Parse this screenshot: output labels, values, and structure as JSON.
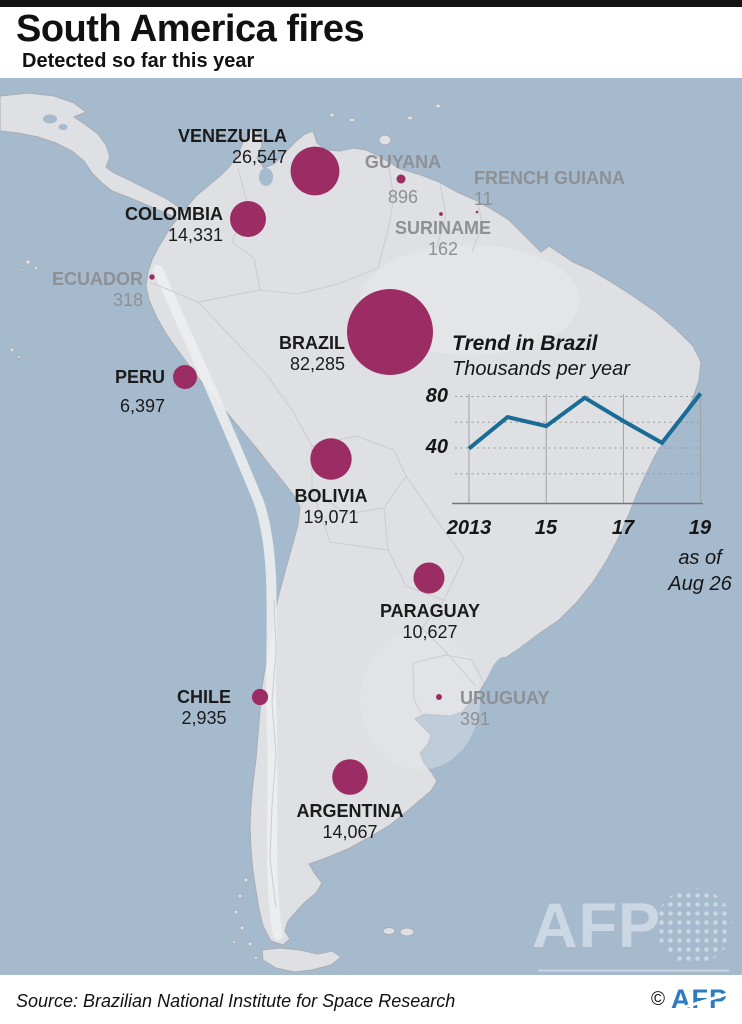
{
  "header": {
    "title": "South America fires",
    "subtitle": "Detected so far this year"
  },
  "map": {
    "countries": [
      {
        "name": "VENEZUELA",
        "value": "26,547"
      },
      {
        "name": "COLOMBIA",
        "value": "14,331"
      },
      {
        "name": "BRAZIL",
        "value": "82,285"
      },
      {
        "name": "PERU",
        "value": "6,397"
      },
      {
        "name": "BOLIVIA",
        "value": "19,071"
      },
      {
        "name": "PARAGUAY",
        "value": "10,627"
      },
      {
        "name": "CHILE",
        "value": "2,935"
      },
      {
        "name": "ARGENTINA",
        "value": "14,067"
      },
      {
        "name": "GUYANA",
        "value": "896"
      },
      {
        "name": "FRENCH GUIANA",
        "value": "11"
      },
      {
        "name": "SURINAME",
        "value": "162"
      },
      {
        "name": "ECUADOR",
        "value": "318"
      },
      {
        "name": "URUGUAY",
        "value": "391"
      }
    ]
  },
  "inset": {
    "title": "Trend in Brazil",
    "subtitle": "Thousands per year",
    "yticks": [
      "80",
      "40"
    ],
    "xticks": [
      "2013",
      "15",
      "17",
      "19"
    ],
    "note": [
      "as of",
      "Aug 26"
    ]
  },
  "footer": {
    "source": "Source: Brazilian National Institute for Space Research",
    "copyright_symbol": "©",
    "brand": "AFP"
  },
  "watermark_brand": "AFP",
  "colors": {
    "bubble": "#9b2d64",
    "sea": "#a6bace",
    "land": "#dfe0e3",
    "trend_line": "#1a6c96",
    "muted_text": "#8e9094",
    "afp_blue": "#2e7cc0"
  },
  "chart_data": [
    {
      "type": "bubble-map",
      "title": "South America fires",
      "subtitle": "Detected so far this year",
      "unit": "fires detected",
      "points": [
        {
          "country": "VENEZUELA",
          "fires": 26547
        },
        {
          "country": "COLOMBIA",
          "fires": 14331
        },
        {
          "country": "BRAZIL",
          "fires": 82285
        },
        {
          "country": "PERU",
          "fires": 6397
        },
        {
          "country": "BOLIVIA",
          "fires": 19071
        },
        {
          "country": "PARAGUAY",
          "fires": 10627
        },
        {
          "country": "CHILE",
          "fires": 2935
        },
        {
          "country": "ARGENTINA",
          "fires": 14067
        },
        {
          "country": "GUYANA",
          "fires": 896
        },
        {
          "country": "FRENCH GUIANA",
          "fires": 11
        },
        {
          "country": "SURINAME",
          "fires": 162
        },
        {
          "country": "ECUADOR",
          "fires": 318
        },
        {
          "country": "URUGUAY",
          "fires": 391
        }
      ]
    },
    {
      "type": "line",
      "title": "Trend in Brazil",
      "ylabel": "Thousands per year",
      "x": [
        2013,
        2014,
        2015,
        2016,
        2017,
        2018,
        2019
      ],
      "values": [
        39.5,
        64,
        57,
        79,
        61,
        44,
        82.3
      ],
      "ylim": [
        0,
        88
      ],
      "yticks": [
        40,
        80
      ],
      "xtick_labels": [
        "2013",
        "15",
        "17",
        "19"
      ],
      "grid": "dotted-horizontal",
      "note": "as of Aug 26",
      "line_color": "#1a6c96"
    }
  ]
}
